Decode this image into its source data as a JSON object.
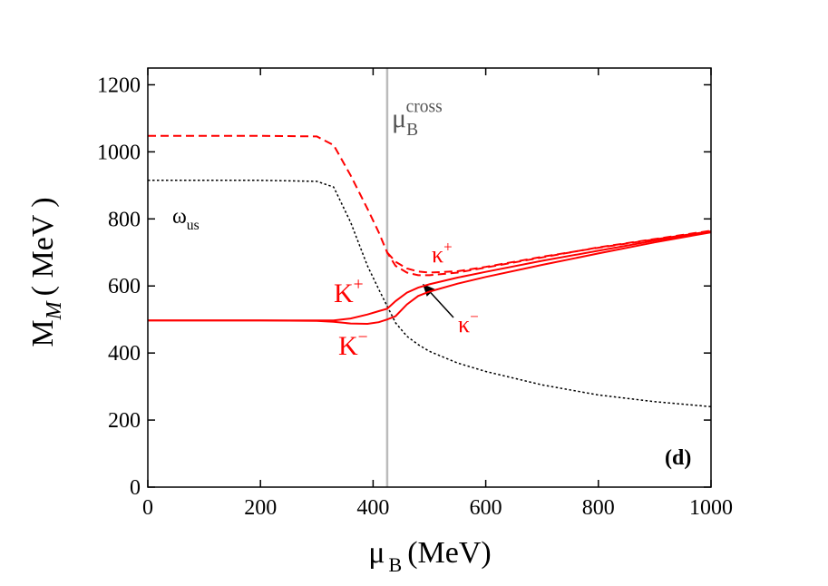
{
  "chart_data": {
    "type": "line",
    "x_label": {
      "text": "μ",
      "sub": "B",
      "unit": "(MeV)"
    },
    "y_label": {
      "text": "M",
      "sub": "M",
      "unit": "( MeV )"
    },
    "xlim": [
      0,
      1000
    ],
    "ylim": [
      0,
      1250
    ],
    "xticks": [
      0,
      200,
      400,
      600,
      800,
      1000
    ],
    "yticks": [
      0,
      200,
      400,
      600,
      800,
      1000,
      1200
    ],
    "x": [
      0,
      100,
      200,
      300,
      330,
      360,
      390,
      410,
      425,
      440,
      460,
      480,
      500,
      550,
      600,
      700,
      800,
      900,
      1000
    ],
    "series": [
      {
        "color": "#ff0000",
        "dash": "dashed",
        "values": [
          1048,
          1048,
          1048,
          1046,
          1020,
          930,
          830,
          760,
          700,
          660,
          640,
          632,
          632,
          640,
          655,
          685,
          715,
          740,
          765
        ]
      },
      {
        "color": "#ff0000",
        "dash": "dashed",
        "values": [
          null,
          null,
          null,
          null,
          null,
          null,
          null,
          null,
          700,
          672,
          652,
          643,
          640,
          644,
          657,
          687,
          714,
          739,
          763
        ]
      },
      {
        "color": "#000000",
        "dash": "dotted",
        "values": [
          915,
          915,
          915,
          912,
          895,
          790,
          660,
          590,
          540,
          490,
          450,
          425,
          405,
          370,
          345,
          305,
          275,
          255,
          240
        ]
      },
      {
        "color": "#ff0000",
        "dash": "solid",
        "values": [
          497,
          497,
          497,
          497,
          497,
          503,
          515,
          525,
          532,
          555,
          580,
          595,
          605,
          625,
          642,
          675,
          705,
          735,
          762
        ]
      },
      {
        "color": "#ff0000",
        "dash": "solid",
        "values": [
          497,
          497,
          497,
          496,
          493,
          488,
          487,
          492,
          500,
          510,
          545,
          570,
          583,
          607,
          627,
          663,
          697,
          730,
          760
        ]
      }
    ],
    "vline": {
      "x": 425,
      "color": "#bbbbbb"
    },
    "annotations": [
      {
        "text": "ω",
        "sub": "us",
        "color": "#000000"
      },
      {
        "text": "K",
        "sup": "+",
        "color": "#ff0000"
      },
      {
        "text": "K",
        "sup": "−",
        "color": "#ff0000"
      },
      {
        "text": "κ",
        "sup": "+",
        "color": "#ff0000"
      },
      {
        "text": "κ",
        "sup": "−",
        "color": "#ff0000"
      },
      {
        "text": "μ",
        "sub": "B",
        "sup": "cross",
        "color": "#555555"
      },
      {
        "text": "(d)",
        "color": "#000000"
      }
    ]
  }
}
